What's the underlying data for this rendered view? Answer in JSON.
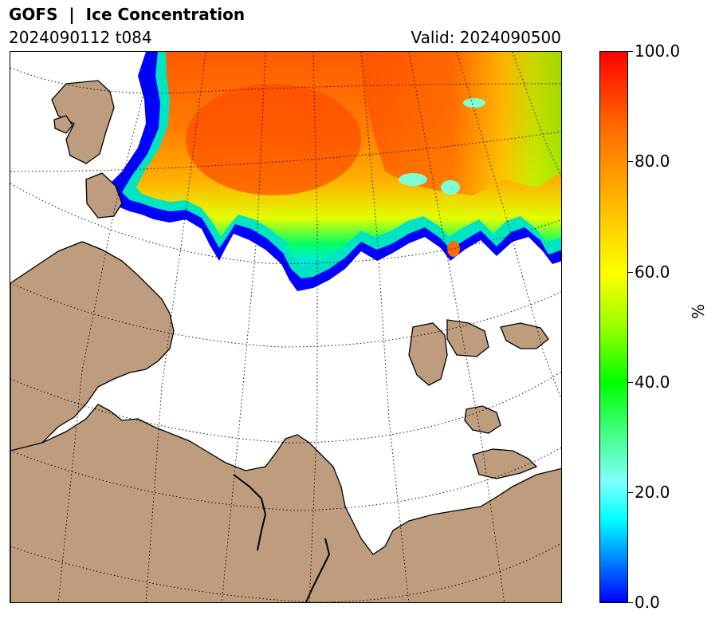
{
  "header": {
    "title": "GOFS  |  Ice Concentration",
    "run": "2024090112 t084",
    "valid": "Valid: 2024090500"
  },
  "colorbar": {
    "unit": "%",
    "ticks": [
      "0.0",
      "20.0",
      "40.0",
      "60.0",
      "80.0",
      "100.0"
    ],
    "min": 0,
    "max": 100,
    "colors": [
      "#0000ff",
      "#00ffff",
      "#00ff00",
      "#ffff00",
      "#ff8c00",
      "#ff0000"
    ]
  },
  "map": {
    "land_color": "#bd9d7d",
    "ocean_color": "#ffffff",
    "graticule": "dotted"
  }
}
